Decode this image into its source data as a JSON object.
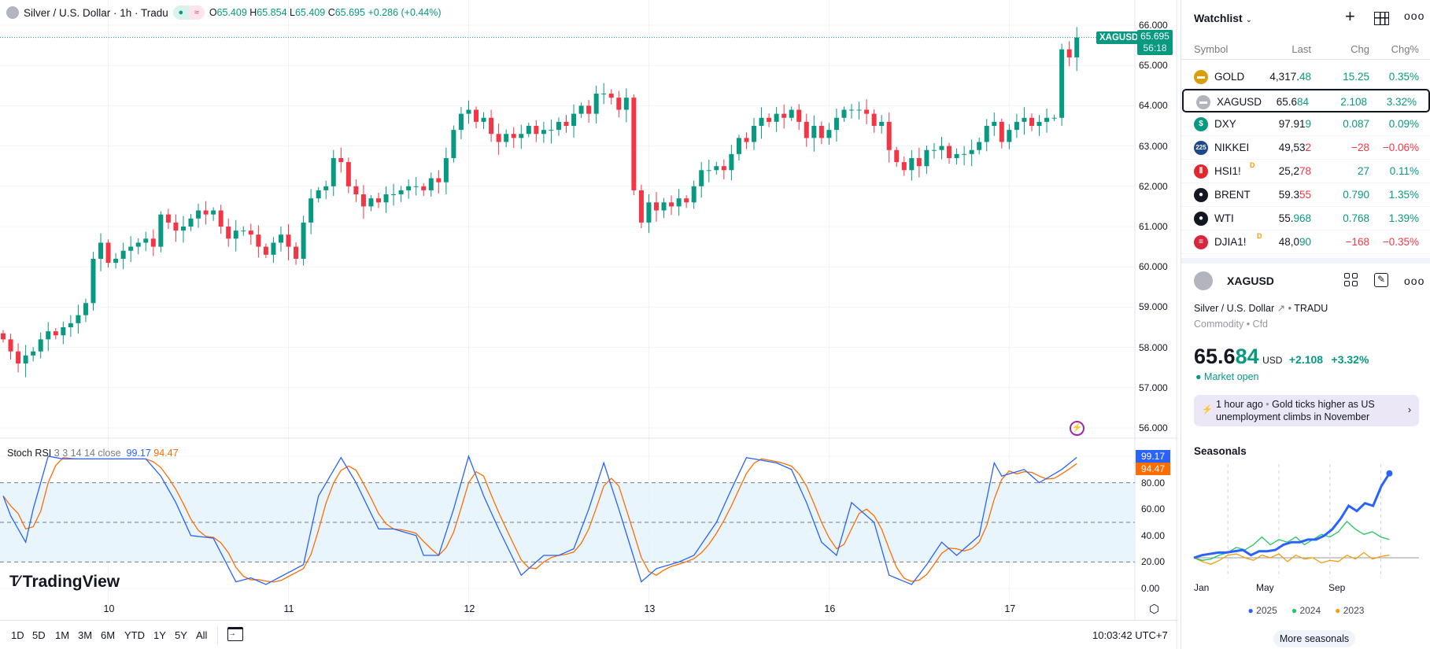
{
  "legend": {
    "title": "Silver / U.S. Dollar · 1h · Tradu",
    "o_label": "O",
    "o": "65.409",
    "h_label": "H",
    "h": "65.854",
    "l_label": "L",
    "l": "65.409",
    "c_label": "C",
    "c": "65.695",
    "change": "+0.286 (+0.44%)"
  },
  "price_tag": {
    "symbol": "XAGUSD",
    "price": "65.695",
    "countdown": "56:18"
  },
  "price_axis": [
    "66.000",
    "65.000",
    "64.000",
    "63.000",
    "62.000",
    "61.000",
    "60.000",
    "59.000",
    "58.000",
    "57.000",
    "56.000"
  ],
  "time_axis": [
    "10",
    "11",
    "12",
    "13",
    "16",
    "17"
  ],
  "indicator": {
    "name": "Stoch RSI",
    "params": "3 3 14 14 close",
    "k": "99.17",
    "d": "94.47",
    "axis": [
      "80.00",
      "60.00",
      "40.00",
      "20.00",
      "0.00"
    ]
  },
  "logo": "TradingView",
  "toolbar": {
    "ranges": [
      "1D",
      "5D",
      "1M",
      "3M",
      "6M",
      "YTD",
      "1Y",
      "5Y",
      "All"
    ],
    "time": "10:03:42 UTC+7"
  },
  "colors": {
    "up": "#089981",
    "down": "#f23645",
    "k": "#2962ff",
    "d": "#ff6d00"
  },
  "chart_data": {
    "type": "candlestick",
    "symbol": "XAGUSD",
    "interval": "1h",
    "ylim": [
      56,
      66
    ],
    "day_ticks": [
      {
        "label": "10",
        "index": 14
      },
      {
        "label": "11",
        "index": 38
      },
      {
        "label": "12",
        "index": 62
      },
      {
        "label": "13",
        "index": 86
      },
      {
        "label": "16",
        "index": 110
      },
      {
        "label": "17",
        "index": 134
      }
    ],
    "closes": [
      58.2,
      57.9,
      57.6,
      57.8,
      57.9,
      58.2,
      58.4,
      58.3,
      58.5,
      58.6,
      58.8,
      59.1,
      60.2,
      60.6,
      60.1,
      60.2,
      60.4,
      60.5,
      60.6,
      60.7,
      60.5,
      61.3,
      61.1,
      60.9,
      61.0,
      61.2,
      61.4,
      61.3,
      61.4,
      61.0,
      60.7,
      60.9,
      60.9,
      60.8,
      60.5,
      60.3,
      60.6,
      60.8,
      60.5,
      60.2,
      61.1,
      61.7,
      61.9,
      62.0,
      62.7,
      62.6,
      62.0,
      61.8,
      61.5,
      61.7,
      61.6,
      61.8,
      61.8,
      61.9,
      62.0,
      62.0,
      61.9,
      62.2,
      62.1,
      62.7,
      63.4,
      63.8,
      63.9,
      63.6,
      63.7,
      63.3,
      63.1,
      63.3,
      63.2,
      63.3,
      63.5,
      63.3,
      63.4,
      63.4,
      63.6,
      63.5,
      63.8,
      64.0,
      63.8,
      64.3,
      64.3,
      64.2,
      63.9,
      64.2,
      61.9,
      61.1,
      61.6,
      61.4,
      61.6,
      61.5,
      61.7,
      61.6,
      62.0,
      62.4,
      62.4,
      62.5,
      62.4,
      62.8,
      63.2,
      63.1,
      63.5,
      63.7,
      63.6,
      63.8,
      63.7,
      63.9,
      63.6,
      63.2,
      63.5,
      63.2,
      63.4,
      63.7,
      63.9,
      63.9,
      63.9,
      63.8,
      63.5,
      63.6,
      62.9,
      62.6,
      62.4,
      62.7,
      62.5,
      62.9,
      62.9,
      63.0,
      62.7,
      62.8,
      62.8,
      62.9,
      63.1,
      63.5,
      63.6,
      63.1,
      63.4,
      63.6,
      63.7,
      63.5,
      63.6,
      63.7,
      63.7,
      65.4,
      65.2,
      65.695
    ],
    "stoch_k": [
      [
        0,
        70
      ],
      [
        1,
        55
      ],
      [
        3,
        35
      ],
      [
        4,
        60
      ],
      [
        6,
        100
      ],
      [
        8,
        98
      ],
      [
        12,
        98
      ],
      [
        19,
        98
      ],
      [
        21,
        85
      ],
      [
        23,
        65
      ],
      [
        25,
        40
      ],
      [
        28,
        38
      ],
      [
        31,
        5
      ],
      [
        33,
        8
      ],
      [
        35,
        3
      ],
      [
        38,
        12
      ],
      [
        40,
        18
      ],
      [
        42,
        70
      ],
      [
        45,
        99
      ],
      [
        47,
        80
      ],
      [
        50,
        45
      ],
      [
        52,
        45
      ],
      [
        55,
        40
      ],
      [
        56,
        25
      ],
      [
        58,
        25
      ],
      [
        60,
        60
      ],
      [
        62,
        100
      ],
      [
        64,
        70
      ],
      [
        66,
        45
      ],
      [
        69,
        10
      ],
      [
        72,
        25
      ],
      [
        74,
        25
      ],
      [
        76,
        30
      ],
      [
        78,
        60
      ],
      [
        80,
        95
      ],
      [
        82,
        60
      ],
      [
        85,
        5
      ],
      [
        87,
        15
      ],
      [
        90,
        20
      ],
      [
        92,
        25
      ],
      [
        95,
        50
      ],
      [
        97,
        75
      ],
      [
        99,
        99
      ],
      [
        103,
        95
      ],
      [
        105,
        90
      ],
      [
        107,
        65
      ],
      [
        109,
        35
      ],
      [
        111,
        25
      ],
      [
        113,
        65
      ],
      [
        116,
        50
      ],
      [
        118,
        10
      ],
      [
        121,
        3
      ],
      [
        123,
        18
      ],
      [
        125,
        35
      ],
      [
        127,
        25
      ],
      [
        130,
        40
      ],
      [
        132,
        95
      ],
      [
        133,
        85
      ],
      [
        136,
        90
      ],
      [
        138,
        80
      ],
      [
        141,
        90
      ],
      [
        143,
        99.17
      ]
    ]
  },
  "watchlist": {
    "title": "Watchlist",
    "columns": [
      "Symbol",
      "Last",
      "Chg",
      "Chg%"
    ],
    "rows": [
      {
        "symbol": "GOLD",
        "last_a": "4,317.",
        "last_b": "48",
        "chg": "15.25",
        "pct": "0.35%",
        "dir": "up",
        "icon": "gold-icon",
        "icon_bg": "#d99e0b",
        "icon_text": "▬",
        "badge": ""
      },
      {
        "symbol": "XAGUSD",
        "last_a": "65.6",
        "last_b": "84",
        "chg": "2.108",
        "pct": "3.32%",
        "dir": "up",
        "icon": "silver-icon",
        "icon_bg": "#b2b5be",
        "icon_text": "▬",
        "badge": ""
      },
      {
        "symbol": "DXY",
        "last_a": "97.91",
        "last_b": "9",
        "chg": "0.087",
        "pct": "0.09%",
        "dir": "up",
        "icon": "dollar-icon",
        "icon_bg": "#089981",
        "icon_text": "$",
        "badge": ""
      },
      {
        "symbol": "NIKKEI",
        "last_a": "49,53",
        "last_b": "2",
        "chg": "−28",
        "pct": "−0.06%",
        "dir": "down",
        "icon": "nikkei-icon",
        "icon_bg": "#1e4a8a",
        "icon_text": "225",
        "badge": ""
      },
      {
        "symbol": "HSI1!",
        "last_a": "25,2",
        "last_b": "78",
        "chg": "27",
        "pct": "0.11%",
        "dir": "up",
        "lastdir": "down",
        "icon": "hsi-icon",
        "icon_bg": "#e0282e",
        "icon_text": "Ⅱ",
        "badge": "D"
      },
      {
        "symbol": "BRENT",
        "last_a": "59.3",
        "last_b": "55",
        "chg": "0.790",
        "pct": "1.35%",
        "dir": "up",
        "lastdir": "down",
        "icon": "oil-drop-icon",
        "icon_bg": "#131722",
        "icon_text": "●",
        "badge": ""
      },
      {
        "symbol": "WTI",
        "last_a": "55.",
        "last_b": "968",
        "chg": "0.768",
        "pct": "1.39%",
        "dir": "up",
        "icon": "oil-drop-icon",
        "icon_bg": "#131722",
        "icon_text": "●",
        "badge": ""
      },
      {
        "symbol": "DJIA1!",
        "last_a": "48,0",
        "last_b": "90",
        "chg": "−168",
        "pct": "−0.35%",
        "dir": "down",
        "lastdir": "up",
        "icon": "us-flag-icon",
        "icon_bg": "#d7263d",
        "icon_text": "≡",
        "badge": "D"
      }
    ]
  },
  "details": {
    "symbol": "XAGUSD",
    "name": "Silver / U.S. Dollar",
    "exchange": "TRADU",
    "type": "Commodity",
    "subtype": "Cfd",
    "price_a": "65.6",
    "price_b": "84",
    "currency": "USD",
    "change": "+2.108",
    "change_pct": "+3.32%",
    "status": "Market open",
    "news_time": "1 hour ago",
    "news_text": "Gold ticks higher as US unemployment climbs in November"
  },
  "seasonals": {
    "title": "Seasonals",
    "x_labels": [
      "Jan",
      "May",
      "Sep"
    ],
    "button": "More seasonals",
    "series": [
      {
        "name": "2025",
        "color": "#2962ff",
        "values": [
          0,
          2,
          3,
          4,
          4,
          5,
          6,
          2,
          5,
          5,
          6,
          10,
          12,
          12,
          14,
          14,
          17,
          22,
          30,
          40,
          36,
          42,
          40,
          55,
          65
        ]
      },
      {
        "name": "2024",
        "color": "#22c55e",
        "values": [
          0,
          -2,
          -1,
          2,
          4,
          8,
          6,
          10,
          16,
          10,
          14,
          12,
          16,
          10,
          14,
          18,
          16,
          20,
          28,
          22,
          18,
          20,
          16,
          14
        ]
      },
      {
        "name": "2023",
        "color": "#f59e0b",
        "values": [
          0,
          -3,
          -5,
          -2,
          2,
          3,
          0,
          -2,
          2,
          0,
          3,
          -3,
          2,
          -1,
          0,
          -4,
          -2,
          -3,
          2,
          -1,
          4,
          -1,
          1,
          2
        ]
      }
    ]
  }
}
